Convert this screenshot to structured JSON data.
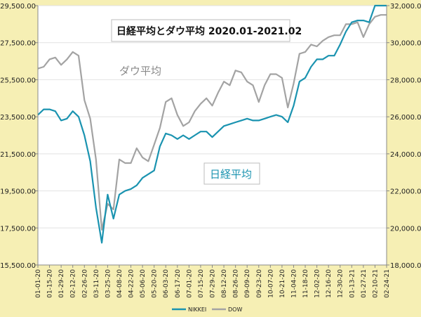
{
  "chart_data": {
    "type": "line",
    "title": "日経平均とダウ平均 2020.01-2021.02",
    "annotations": {
      "dow": "ダウ平均",
      "nikkei": "日経平均"
    },
    "x": [
      "01-01-20",
      "01-08-20",
      "01-15-20",
      "01-22-20",
      "01-29-20",
      "02-05-20",
      "02-12-20",
      "02-19-20",
      "02-26-20",
      "03-04-20",
      "03-11-20",
      "03-18-20",
      "03-25-20",
      "04-01-20",
      "04-08-20",
      "04-15-20",
      "04-22-20",
      "04-29-20",
      "05-06-20",
      "05-13-20",
      "05-20-20",
      "05-27-20",
      "06-03-20",
      "06-10-20",
      "06-17-20",
      "06-24-20",
      "07-01-20",
      "07-08-20",
      "07-15-20",
      "07-22-20",
      "07-29-20",
      "08-05-20",
      "08-12-20",
      "08-19-20",
      "08-26-20",
      "09-02-20",
      "09-09-20",
      "09-16-20",
      "09-23-20",
      "09-30-20",
      "10-07-20",
      "10-14-20",
      "10-21-20",
      "10-28-20",
      "11-04-20",
      "11-11-20",
      "11-18-20",
      "11-25-20",
      "12-02-20",
      "12-09-20",
      "12-16-20",
      "12-23-20",
      "12-30-20",
      "01-06-21",
      "01-13-21",
      "01-20-21",
      "01-27-21",
      "02-03-21",
      "02-10-21",
      "02-17-21",
      "02-24-21"
    ],
    "xticklabels": [
      "01-01-20",
      "01-15-20",
      "01-29-20",
      "02-12-20",
      "02-26-20",
      "03-11-20",
      "03-25-20",
      "04-08-20",
      "04-22-20",
      "05-06-20",
      "05-20-20",
      "06-03-20",
      "06-17-20",
      "07-01-20",
      "07-15-20",
      "07-29-20",
      "08-12-20",
      "08-26-20",
      "09-09-20",
      "09-23-20",
      "10-07-20",
      "10-21-20",
      "11-04-20",
      "11-18-20",
      "12-02-20",
      "12-16-20",
      "12-30-20",
      "01-13-21",
      "01-27-21",
      "02-10-21",
      "02-24-21"
    ],
    "yticks_left": [
      "15,500.00",
      "17,500.00",
      "19,500.00",
      "21,500.00",
      "23,500.00",
      "25,500.00",
      "27,500.00",
      "29,500.00"
    ],
    "yticks_right": [
      "18,000.00",
      "20,000.00",
      "22,000.00",
      "24,000.00",
      "26,000.00",
      "28,000.00",
      "30,000.00",
      "32,000.00"
    ],
    "ylim_left": [
      15500,
      29500
    ],
    "ylim_right": [
      18000,
      32000
    ],
    "legend_position": "bottom",
    "series": [
      {
        "name": "NIKKEI",
        "axis": "left",
        "color": "#1a93b0",
        "values": [
          23600,
          23900,
          23900,
          23800,
          23300,
          23400,
          23800,
          23500,
          22500,
          21100,
          18600,
          16700,
          19300,
          18000,
          19300,
          19500,
          19600,
          19800,
          20200,
          20400,
          20600,
          21900,
          22600,
          22500,
          22300,
          22500,
          22300,
          22500,
          22700,
          22700,
          22400,
          22700,
          23000,
          23100,
          23200,
          23300,
          23400,
          23300,
          23300,
          23400,
          23500,
          23600,
          23500,
          23200,
          24100,
          25400,
          25600,
          26200,
          26600,
          26600,
          26800,
          26800,
          27400,
          28100,
          28600,
          28700,
          28700,
          28600,
          29500,
          29500,
          29500
        ]
      },
      {
        "name": "DOW",
        "axis": "right",
        "color": "#a3a3a3",
        "values": [
          28600,
          28700,
          29100,
          29200,
          28800,
          29100,
          29500,
          29300,
          26900,
          25900,
          23700,
          19900,
          21300,
          21000,
          23700,
          23500,
          23500,
          24300,
          23800,
          23600,
          24500,
          25400,
          26800,
          27000,
          26100,
          25500,
          25700,
          26300,
          26700,
          27000,
          26600,
          27300,
          27900,
          27700,
          28500,
          28400,
          27900,
          27700,
          26800,
          27700,
          28300,
          28300,
          28100,
          26500,
          27800,
          29400,
          29500,
          29900,
          29800,
          30100,
          30300,
          30400,
          30400,
          31000,
          31000,
          31100,
          30300,
          31000,
          31400,
          31500,
          31500
        ]
      }
    ]
  }
}
